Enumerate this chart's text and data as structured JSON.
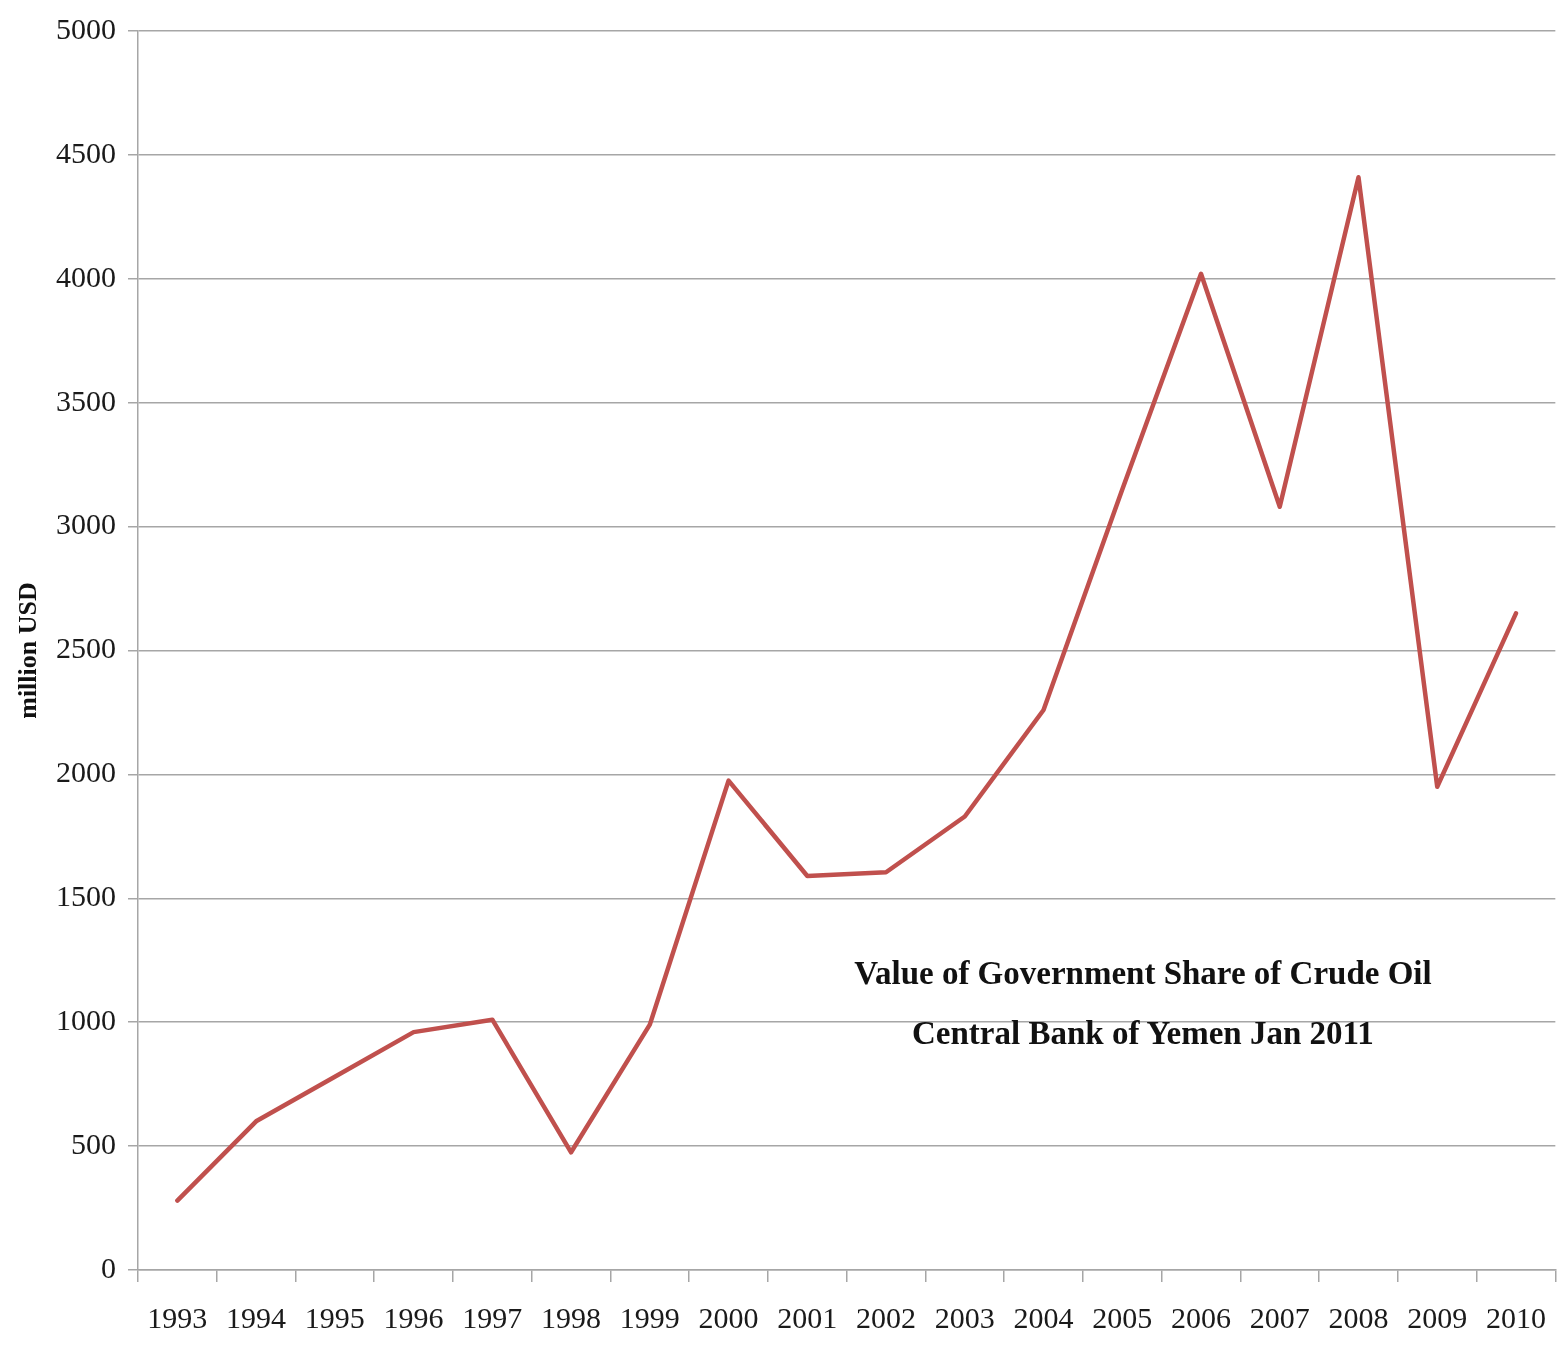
{
  "chart_data": {
    "type": "line",
    "title": "Value of Government Share of Crude Oil",
    "subtitle": "Central Bank of Yemen Jan 2011",
    "ylabel": "million USD",
    "categories": [
      "1993",
      "1994",
      "1995",
      "1996",
      "1997",
      "1998",
      "1999",
      "2000",
      "2001",
      "2002",
      "2003",
      "2004",
      "2005",
      "2006",
      "2007",
      "2008",
      "2009",
      "2010"
    ],
    "series": [
      {
        "color": "#c0504d",
        "values": [
          280,
          600,
          780,
          960,
          1010,
          475,
          990,
          1975,
          1590,
          1605,
          1830,
          2260,
          3150,
          4020,
          3080,
          4410,
          1950,
          2650
        ]
      }
    ],
    "ylim": [
      0,
      5000
    ],
    "yticks": [
      0,
      500,
      1000,
      1500,
      2000,
      2500,
      3000,
      3500,
      4000,
      4500,
      5000
    ],
    "grid": "y"
  }
}
